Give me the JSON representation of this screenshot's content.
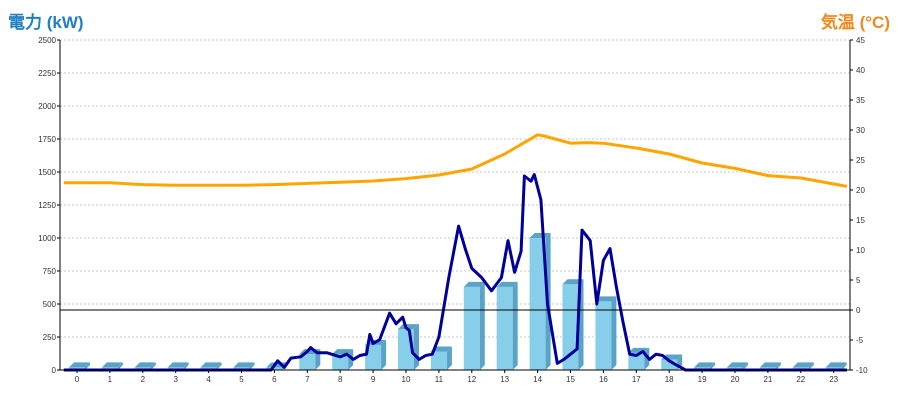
{
  "chart_data": {
    "type": "bar",
    "y_left_label": "電力 (kW)",
    "y_right_label": "気温 (°C)",
    "categories": [
      "0",
      "1",
      "2",
      "3",
      "4",
      "5",
      "6",
      "7",
      "8",
      "9",
      "10",
      "11",
      "12",
      "13",
      "14",
      "15",
      "16",
      "17",
      "18",
      "19",
      "20",
      "21",
      "22",
      "23"
    ],
    "y_left_ticks": [
      "0",
      "250",
      "500",
      "750",
      "1000",
      "1250",
      "1500",
      "1750",
      "2000",
      "2250",
      "2500"
    ],
    "y_right_ticks": [
      "-10",
      "-5",
      "0",
      "5",
      "10",
      "15",
      "20",
      "25",
      "30",
      "35",
      "40",
      "45"
    ],
    "ylim_left": [
      0,
      2500
    ],
    "ylim_right": [
      -10,
      45
    ],
    "grid": true,
    "colors": {
      "bars": "#87ceeb",
      "bars_dark": "#5aa3c7",
      "power_line": "#000099",
      "temp_line": "#ffa500",
      "zero_line": "#000000",
      "title_left": "#1f7fc2",
      "title_right": "#f08a1c"
    },
    "bars": [
      {
        "x": 0,
        "value": 20
      },
      {
        "x": 1,
        "value": 20
      },
      {
        "x": 2,
        "value": 20
      },
      {
        "x": 3,
        "value": 20
      },
      {
        "x": 4,
        "value": 20
      },
      {
        "x": 5,
        "value": 20
      },
      {
        "x": 6,
        "value": 20
      },
      {
        "x": 7,
        "value": 120
      },
      {
        "x": 8,
        "value": 120
      },
      {
        "x": 9,
        "value": 190
      },
      {
        "x": 10,
        "value": 310
      },
      {
        "x": 11,
        "value": 140
      },
      {
        "x": 12,
        "value": 630
      },
      {
        "x": 13,
        "value": 630
      },
      {
        "x": 14,
        "value": 1000
      },
      {
        "x": 15,
        "value": 650
      },
      {
        "x": 16,
        "value": 520
      },
      {
        "x": 17,
        "value": 130
      },
      {
        "x": 18,
        "value": 80
      },
      {
        "x": 19,
        "value": 20
      },
      {
        "x": 20,
        "value": 20
      },
      {
        "x": 21,
        "value": 20
      },
      {
        "x": 22,
        "value": 20
      },
      {
        "x": 23,
        "value": 20
      }
    ],
    "power_line": [
      [
        -0.4,
        0
      ],
      [
        5.5,
        0
      ],
      [
        5.9,
        0
      ],
      [
        6.1,
        70
      ],
      [
        6.3,
        20
      ],
      [
        6.5,
        90
      ],
      [
        6.8,
        100
      ],
      [
        7.0,
        140
      ],
      [
        7.1,
        170
      ],
      [
        7.3,
        130
      ],
      [
        7.6,
        130
      ],
      [
        8.0,
        100
      ],
      [
        8.2,
        120
      ],
      [
        8.4,
        80
      ],
      [
        8.6,
        110
      ],
      [
        8.8,
        120
      ],
      [
        8.9,
        270
      ],
      [
        9.0,
        200
      ],
      [
        9.2,
        230
      ],
      [
        9.5,
        430
      ],
      [
        9.7,
        350
      ],
      [
        9.9,
        400
      ],
      [
        10.0,
        320
      ],
      [
        10.1,
        300
      ],
      [
        10.2,
        130
      ],
      [
        10.4,
        80
      ],
      [
        10.6,
        110
      ],
      [
        10.8,
        120
      ],
      [
        11.0,
        250
      ],
      [
        11.3,
        700
      ],
      [
        11.6,
        1090
      ],
      [
        11.8,
        920
      ],
      [
        12.0,
        770
      ],
      [
        12.3,
        700
      ],
      [
        12.6,
        600
      ],
      [
        12.9,
        700
      ],
      [
        13.1,
        980
      ],
      [
        13.3,
        740
      ],
      [
        13.5,
        900
      ],
      [
        13.6,
        1470
      ],
      [
        13.8,
        1430
      ],
      [
        13.9,
        1480
      ],
      [
        14.1,
        1290
      ],
      [
        14.3,
        500
      ],
      [
        14.6,
        50
      ],
      [
        14.8,
        80
      ],
      [
        15.0,
        120
      ],
      [
        15.2,
        160
      ],
      [
        15.35,
        1060
      ],
      [
        15.6,
        980
      ],
      [
        15.8,
        500
      ],
      [
        16.0,
        830
      ],
      [
        16.2,
        920
      ],
      [
        16.4,
        620
      ],
      [
        16.6,
        360
      ],
      [
        16.8,
        120
      ],
      [
        17.0,
        110
      ],
      [
        17.2,
        140
      ],
      [
        17.4,
        80
      ],
      [
        17.6,
        120
      ],
      [
        17.8,
        110
      ],
      [
        18.0,
        70
      ],
      [
        18.2,
        40
      ],
      [
        18.5,
        0
      ],
      [
        23.4,
        0
      ]
    ],
    "temp_line": [
      [
        -0.4,
        21.2
      ],
      [
        1,
        21.2
      ],
      [
        2,
        20.9
      ],
      [
        3,
        20.8
      ],
      [
        4,
        20.8
      ],
      [
        5,
        20.8
      ],
      [
        6,
        20.9
      ],
      [
        7,
        21.1
      ],
      [
        8,
        21.3
      ],
      [
        9,
        21.5
      ],
      [
        10,
        21.9
      ],
      [
        11,
        22.5
      ],
      [
        12,
        23.5
      ],
      [
        13,
        26.0
      ],
      [
        14,
        29.2
      ],
      [
        14.2,
        29.0
      ],
      [
        15,
        27.8
      ],
      [
        15.5,
        27.9
      ],
      [
        16,
        27.8
      ],
      [
        17,
        27.0
      ],
      [
        18,
        26.0
      ],
      [
        19,
        24.5
      ],
      [
        20,
        23.6
      ],
      [
        21,
        22.4
      ],
      [
        22,
        22.0
      ],
      [
        23.4,
        20.6
      ]
    ]
  }
}
